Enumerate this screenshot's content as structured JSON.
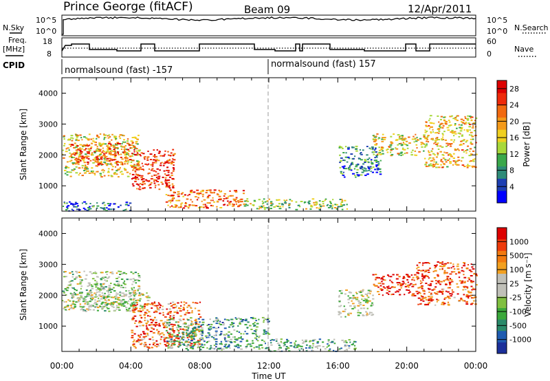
{
  "header": {
    "station": "Prince George (fitACF)",
    "beam": "Beam 09",
    "date": "12/Apr/2011"
  },
  "strips": {
    "nsky_label": "N.Sky",
    "nsearch_label": "N.Search",
    "freq_label_1": "Freq.",
    "freq_label_2": "[MHz]",
    "nave_label": "Nave",
    "cpid_label": "CPID",
    "left_ticks_top": [
      "10^5",
      "10^0"
    ],
    "right_ticks_top": [
      "10^5",
      "10^0"
    ],
    "left_ticks_mid": [
      "18",
      "8"
    ],
    "right_ticks_mid": [
      "60",
      "0"
    ],
    "cpid_segments": [
      "normalsound (fast) -157",
      "normalsound (fast) 157"
    ]
  },
  "axes": {
    "ylabel": "Slant Range [km]",
    "xlabel": "Time UT",
    "power_label": "Power [dB]",
    "velocity_label": "Velocity [m s⁻¹]"
  },
  "chart_data": [
    {
      "type": "heatmap",
      "panel": "power",
      "x_range_hours": [
        0,
        24
      ],
      "x_ticks": [
        "00:00",
        "04:00",
        "08:00",
        "12:00",
        "16:00",
        "20:00",
        "00:00"
      ],
      "y_range_km": [
        180,
        4500
      ],
      "y_ticks": [
        1000,
        2000,
        3000,
        4000
      ],
      "colorbar": {
        "label": "Power [dB]",
        "ticks": [
          4,
          8,
          12,
          16,
          20,
          24,
          28
        ],
        "colors": [
          "#0000ff",
          "#1d3fb2",
          "#2e8b78",
          "#3aa84b",
          "#a8d83a",
          "#f0d020",
          "#f49a1a",
          "#f26a10",
          "#ee2a0a",
          "#dd0000"
        ]
      },
      "scatter_regions": [
        {
          "t_start": 0.0,
          "t_end": 4.5,
          "r_start": 1300,
          "r_end": 2700,
          "level": 0.55
        },
        {
          "t_start": 0.5,
          "t_end": 4.0,
          "r_start": 1700,
          "r_end": 2400,
          "level": 0.8
        },
        {
          "t_start": 4.0,
          "t_end": 6.5,
          "r_start": 900,
          "r_end": 2200,
          "level": 0.85
        },
        {
          "t_start": 6.0,
          "t_end": 10.5,
          "r_start": 300,
          "r_end": 900,
          "level": 0.75
        },
        {
          "t_start": 0.0,
          "t_end": 4.0,
          "r_start": 200,
          "r_end": 500,
          "level": 0.2
        },
        {
          "t_start": 10.5,
          "t_end": 16.5,
          "r_start": 250,
          "r_end": 600,
          "level": 0.45
        },
        {
          "t_start": 16.0,
          "t_end": 18.5,
          "r_start": 1300,
          "r_end": 2300,
          "level": 0.25
        },
        {
          "t_start": 18.0,
          "t_end": 21.0,
          "r_start": 2000,
          "r_end": 2700,
          "level": 0.55
        },
        {
          "t_start": 21.0,
          "t_end": 24.0,
          "r_start": 1600,
          "r_end": 3300,
          "level": 0.6
        }
      ]
    },
    {
      "type": "heatmap",
      "panel": "velocity",
      "x_range_hours": [
        0,
        24
      ],
      "x_ticks": [
        "00:00",
        "04:00",
        "08:00",
        "12:00",
        "16:00",
        "20:00",
        "00:00"
      ],
      "y_range_km": [
        180,
        4500
      ],
      "y_ticks": [
        1000,
        2000,
        3000,
        4000
      ],
      "colorbar": {
        "label": "Velocity [m s⁻¹]",
        "ticks": [
          1000,
          500,
          100,
          25,
          -25,
          -100,
          -500,
          -1000
        ],
        "colors": [
          "#1b2f9a",
          "#1e5bb0",
          "#2a8a6a",
          "#3aa83a",
          "#80c040",
          "#c0c0b8",
          "#c0c0b8",
          "#f2a020",
          "#f27a10",
          "#ee3a0a",
          "#dd0000"
        ]
      },
      "scatter_regions": [
        {
          "t_start": 0.0,
          "t_end": 4.5,
          "r_start": 1500,
          "r_end": 2800,
          "level": 0.45
        },
        {
          "t_start": 0.5,
          "t_end": 5.0,
          "r_start": 1600,
          "r_end": 2100,
          "level": 0.5
        },
        {
          "t_start": 4.0,
          "t_end": 8.0,
          "r_start": 300,
          "r_end": 1800,
          "level": 0.8
        },
        {
          "t_start": 6.0,
          "t_end": 12.0,
          "r_start": 250,
          "r_end": 1300,
          "level": 0.3
        },
        {
          "t_start": 12.0,
          "t_end": 17.0,
          "r_start": 200,
          "r_end": 600,
          "level": 0.35
        },
        {
          "t_start": 16.0,
          "t_end": 18.0,
          "r_start": 1300,
          "r_end": 2200,
          "level": 0.5
        },
        {
          "t_start": 18.0,
          "t_end": 20.5,
          "r_start": 2000,
          "r_end": 2700,
          "level": 0.9
        },
        {
          "t_start": 20.5,
          "t_end": 24.0,
          "r_start": 1700,
          "r_end": 3100,
          "level": 0.85
        }
      ]
    }
  ]
}
